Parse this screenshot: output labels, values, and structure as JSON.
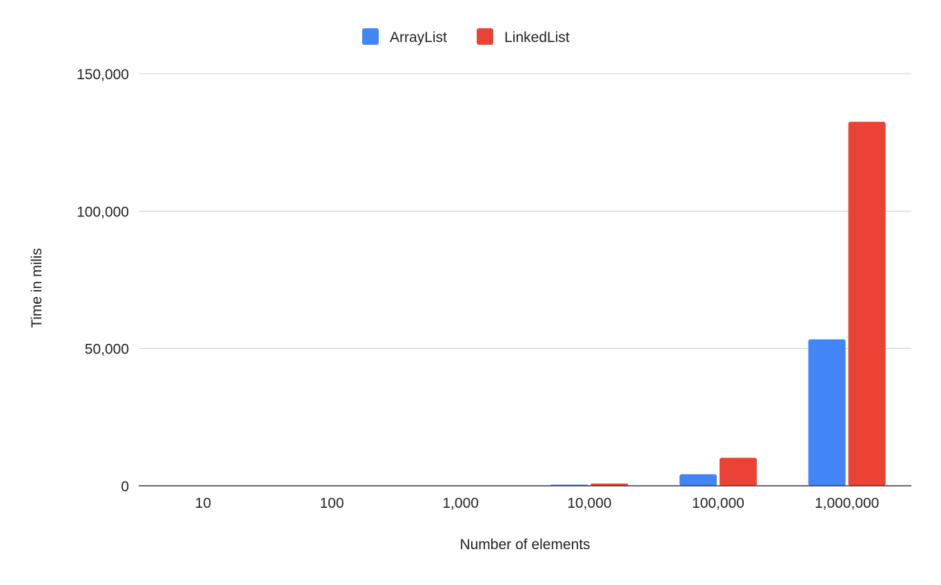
{
  "chart_data": {
    "type": "bar",
    "title": "",
    "xlabel": "Number of elements",
    "ylabel": "Time in milis",
    "categories": [
      "10",
      "100",
      "1,000",
      "10,000",
      "100,000",
      "1,000,000"
    ],
    "series": [
      {
        "name": "ArrayList",
        "color": "#4285F4",
        "values": [
          0,
          1,
          8,
          400,
          4200,
          53300
        ]
      },
      {
        "name": "LinkedList",
        "color": "#EA4335",
        "values": [
          0,
          2,
          15,
          800,
          10200,
          132500
        ]
      }
    ],
    "ylim": [
      0,
      150000
    ],
    "yticks": [
      {
        "value": 0,
        "label": "0"
      },
      {
        "value": 50000,
        "label": "50,000"
      },
      {
        "value": 100000,
        "label": "100,000"
      },
      {
        "value": 150000,
        "label": "150,000"
      }
    ],
    "grid": true,
    "legend_position": "top-center"
  }
}
